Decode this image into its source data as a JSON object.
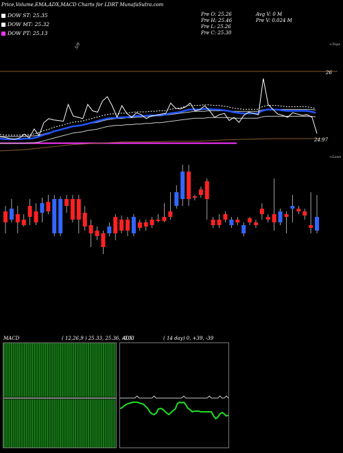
{
  "header": {
    "title": "Price,Volume,EMA,ADX,MACD Charts for LDRT MunafaSutra.com",
    "stats": {
      "pre_o": "Pre  O: 25.26",
      "pre_h": "Pre  H: 25.46",
      "pre_l": "Pre  L: 25.26",
      "pre_c": "Pre  C: 25.30",
      "avg_v": "Avg V: 0  M",
      "pre_v": "Pre  V: 0.024  M"
    }
  },
  "legend": [
    {
      "label": "DOW ST: 25.35",
      "color": "#ffffff"
    },
    {
      "label": "DOW MT: 25.32",
      "color": "#ffffff"
    },
    {
      "label": "DOW PT: 25.13",
      "color": "#ff33ff"
    }
  ],
  "chart_data": [
    {
      "type": "line",
      "title": "Price,Volume,EMA,ADX,MACD Charts for LDRT MunafaSutra.com",
      "ytick_labels": [
        "26",
        "24.97"
      ],
      "annotations": [
        "<Tops",
        "<Lows",
        "5/9"
      ],
      "colors": {
        "price": "#ffffff",
        "ema_fast": "#2255ff",
        "ema_slow": "#cccccc",
        "support": "#8b5a2b",
        "pt_line": "#ff33ff",
        "up": "#3366ff",
        "down": "#ff2222"
      },
      "series": [
        {
          "name": "price",
          "values": [
            25.0,
            24.99,
            24.97,
            24.96,
            24.98,
            25.04,
            24.98,
            25.12,
            25.02,
            25.22,
            25.28,
            25.26,
            25.25,
            25.24,
            25.5,
            25.32,
            25.3,
            25.28,
            25.5,
            25.4,
            25.38,
            25.55,
            25.62,
            25.48,
            25.3,
            25.48,
            25.36,
            25.3,
            25.37,
            25.34,
            25.28,
            25.32,
            25.33,
            25.35,
            25.36,
            25.52,
            25.44,
            25.43,
            25.46,
            25.52,
            25.4,
            25.42,
            25.48,
            25.4,
            25.3,
            25.34,
            25.36,
            25.25,
            25.3,
            25.22,
            25.33,
            25.38,
            25.36,
            25.34,
            25.9,
            25.5,
            25.42,
            25.35,
            25.33,
            25.3,
            25.37,
            25.35,
            25.33,
            25.34,
            25.3,
            25.05
          ]
        },
        {
          "name": "ema_fast",
          "values": [
            24.97,
            24.96,
            24.96,
            24.96,
            24.96,
            24.97,
            24.97,
            24.98,
            25.0,
            25.03,
            25.05,
            25.08,
            25.1,
            25.12,
            25.14,
            25.16,
            25.17,
            25.18,
            25.2,
            25.22,
            25.24,
            25.26,
            25.28,
            25.29,
            25.29,
            25.3,
            25.3,
            25.31,
            25.32,
            25.32,
            25.32,
            25.33,
            25.33,
            25.34,
            25.34,
            25.36,
            25.37,
            25.38,
            25.4,
            25.42,
            25.42,
            25.42,
            25.43,
            25.43,
            25.42,
            25.42,
            25.41,
            25.4,
            25.38,
            25.37,
            25.36,
            25.36,
            25.36,
            25.36,
            25.4,
            25.42,
            25.42,
            25.42,
            25.41,
            25.4,
            25.4,
            25.4,
            25.4,
            25.4,
            25.39,
            25.37
          ]
        },
        {
          "name": "ema_slow",
          "values": [
            24.96,
            24.96,
            24.96,
            24.96,
            24.96,
            24.96,
            24.97,
            24.97,
            24.98,
            25.0,
            25.02,
            25.04,
            25.06,
            25.08,
            25.1,
            25.12,
            25.13,
            25.14,
            25.16,
            25.17,
            25.18,
            25.2,
            25.22,
            25.23,
            25.24,
            25.24,
            25.25,
            25.25,
            25.26,
            25.26,
            25.27,
            25.27,
            25.28,
            25.28,
            25.29,
            25.3,
            25.31,
            25.32,
            25.33,
            25.34,
            25.35,
            25.35,
            25.35,
            25.36,
            25.36,
            25.36,
            25.36,
            25.36,
            25.35,
            25.35,
            25.35,
            25.35,
            25.35,
            25.35,
            25.37,
            25.38,
            25.38,
            25.38,
            25.38,
            25.38,
            25.38,
            25.38,
            25.38,
            25.38,
            25.38,
            25.37
          ]
        },
        {
          "name": "pt_line",
          "values": [
            24.9,
            24.9
          ]
        },
        {
          "name": "support",
          "values": [
            24.78,
            24.8,
            24.84,
            24.88,
            24.9,
            24.92,
            24.92,
            24.93,
            24.93,
            24.95,
            24.96,
            24.97,
            24.97,
            24.97
          ]
        }
      ],
      "candles": [
        {
          "o": 25.36,
          "c": 25.28,
          "h": 25.4,
          "l": 25.2,
          "up": false
        },
        {
          "o": 25.3,
          "c": 25.38,
          "h": 25.45,
          "l": 25.28,
          "up": true
        },
        {
          "o": 25.34,
          "c": 25.28,
          "h": 25.4,
          "l": 25.2,
          "up": false
        },
        {
          "o": 25.26,
          "c": 25.3,
          "h": 25.34,
          "l": 25.25,
          "up": false
        },
        {
          "o": 25.4,
          "c": 25.32,
          "h": 25.45,
          "l": 25.26,
          "up": false
        },
        {
          "o": 25.36,
          "c": 25.28,
          "h": 25.42,
          "l": 25.26,
          "up": false
        },
        {
          "o": 25.35,
          "c": 25.42,
          "h": 25.46,
          "l": 25.28,
          "up": true
        },
        {
          "o": 25.43,
          "c": 25.36,
          "h": 25.48,
          "l": 25.34,
          "up": false
        },
        {
          "o": 25.45,
          "c": 25.2,
          "h": 25.48,
          "l": 25.18,
          "up": true
        },
        {
          "o": 25.2,
          "c": 25.45,
          "h": 25.47,
          "l": 25.18,
          "up": true
        },
        {
          "o": 25.4,
          "c": 25.45,
          "h": 25.48,
          "l": 25.35,
          "up": false
        },
        {
          "o": 25.45,
          "c": 25.3,
          "h": 25.48,
          "l": 25.28,
          "up": false
        },
        {
          "o": 25.3,
          "c": 25.45,
          "h": 25.48,
          "l": 25.2,
          "up": false
        },
        {
          "o": 25.35,
          "c": 25.25,
          "h": 25.4,
          "l": 25.22,
          "up": false
        },
        {
          "o": 25.26,
          "c": 25.2,
          "h": 25.3,
          "l": 25.1,
          "up": false
        },
        {
          "o": 25.18,
          "c": 25.22,
          "h": 25.25,
          "l": 25.15,
          "up": false
        },
        {
          "o": 25.2,
          "c": 25.1,
          "h": 25.22,
          "l": 25.05,
          "up": false
        },
        {
          "o": 25.2,
          "c": 25.25,
          "h": 25.28,
          "l": 25.18,
          "up": true
        },
        {
          "o": 25.2,
          "c": 25.32,
          "h": 25.34,
          "l": 25.15,
          "up": false
        },
        {
          "o": 25.3,
          "c": 25.22,
          "h": 25.33,
          "l": 25.2,
          "up": false
        },
        {
          "o": 25.22,
          "c": 25.3,
          "h": 25.32,
          "l": 25.18,
          "up": false
        },
        {
          "o": 25.32,
          "c": 25.2,
          "h": 25.34,
          "l": 25.18,
          "up": true
        },
        {
          "o": 25.24,
          "c": 25.28,
          "h": 25.3,
          "l": 25.22,
          "up": false
        },
        {
          "o": 25.25,
          "c": 25.28,
          "h": 25.3,
          "l": 25.22,
          "up": false
        },
        {
          "o": 25.26,
          "c": 25.3,
          "h": 25.32,
          "l": 25.24,
          "up": false
        },
        {
          "o": 25.3,
          "c": 25.3,
          "h": 25.34,
          "l": 25.28,
          "up": false
        },
        {
          "o": 25.29,
          "c": 25.32,
          "h": 25.42,
          "l": 25.28,
          "up": false
        },
        {
          "o": 25.32,
          "c": 25.36,
          "h": 25.5,
          "l": 25.3,
          "up": false
        },
        {
          "o": 25.4,
          "c": 25.5,
          "h": 25.55,
          "l": 25.38,
          "up": true
        },
        {
          "o": 25.45,
          "c": 25.65,
          "h": 25.7,
          "l": 25.4,
          "up": true
        },
        {
          "o": 25.65,
          "c": 25.45,
          "h": 25.7,
          "l": 25.4,
          "up": false
        },
        {
          "o": 25.47,
          "c": 25.46,
          "h": 25.48,
          "l": 25.44,
          "up": false
        },
        {
          "o": 25.48,
          "c": 25.52,
          "h": 25.54,
          "l": 25.46,
          "up": false
        },
        {
          "o": 25.58,
          "c": 25.45,
          "h": 25.6,
          "l": 25.3,
          "up": false
        },
        {
          "o": 25.3,
          "c": 25.26,
          "h": 25.32,
          "l": 25.24,
          "up": false
        },
        {
          "o": 25.26,
          "c": 25.3,
          "h": 25.34,
          "l": 25.24,
          "up": false
        },
        {
          "o": 25.3,
          "c": 25.34,
          "h": 25.36,
          "l": 25.28,
          "up": false
        },
        {
          "o": 25.3,
          "c": 25.26,
          "h": 25.32,
          "l": 25.24,
          "up": true
        },
        {
          "o": 25.28,
          "c": 25.3,
          "h": 25.32,
          "l": 25.26,
          "up": false
        },
        {
          "o": 25.26,
          "c": 25.2,
          "h": 25.28,
          "l": 25.18,
          "up": true
        },
        {
          "o": 25.28,
          "c": 25.31,
          "h": 25.32,
          "l": 25.26,
          "up": false
        },
        {
          "o": 25.26,
          "c": 25.28,
          "h": 25.3,
          "l": 25.24,
          "up": false
        },
        {
          "o": 25.34,
          "c": 25.38,
          "h": 25.42,
          "l": 25.3,
          "up": false
        },
        {
          "o": 25.3,
          "c": 25.32,
          "h": 25.34,
          "l": 25.28,
          "up": false
        },
        {
          "o": 25.28,
          "c": 25.34,
          "h": 25.6,
          "l": 25.22,
          "up": false
        },
        {
          "o": 25.28,
          "c": 25.36,
          "h": 25.38,
          "l": 25.26,
          "up": true
        },
        {
          "o": 25.34,
          "c": 25.32,
          "h": 25.36,
          "l": 25.2,
          "up": false
        },
        {
          "o": 25.38,
          "c": 25.4,
          "h": 25.48,
          "l": 25.28,
          "up": true
        },
        {
          "o": 25.36,
          "c": 25.38,
          "h": 25.4,
          "l": 25.34,
          "up": false
        },
        {
          "o": 25.36,
          "c": 25.33,
          "h": 25.38,
          "l": 25.3,
          "up": false
        },
        {
          "o": 25.26,
          "c": 25.24,
          "h": 25.5,
          "l": 25.2,
          "up": false
        },
        {
          "o": 25.22,
          "c": 25.32,
          "h": 25.48,
          "l": 25.2,
          "up": true
        }
      ]
    },
    {
      "type": "line",
      "title": "MACD",
      "params": "( 12,26,9 ) 25.33, 25.36, -0.03",
      "series": [
        {
          "name": "macd",
          "values": [
            0,
            0,
            0,
            0,
            0,
            0,
            0,
            0,
            0,
            0,
            0,
            0,
            0,
            0,
            0,
            0,
            0,
            0,
            0,
            0
          ]
        },
        {
          "name": "signal",
          "values": [
            0,
            0,
            0,
            0,
            0,
            0,
            0,
            0,
            0,
            0,
            0,
            0,
            0,
            0,
            0,
            0,
            0,
            0,
            0,
            0
          ]
        }
      ],
      "colors": {
        "background": "#000000",
        "bars": "#1a8a1a",
        "line": "#ffffff"
      }
    },
    {
      "type": "line",
      "title": "ADX",
      "params": "( 14  day) 0, +39, -39",
      "series": [
        {
          "name": "adx",
          "values": [
            0,
            0,
            0,
            0,
            0,
            0,
            0,
            0,
            0.03,
            0,
            0,
            0,
            0,
            0,
            0,
            0,
            0.03,
            0,
            0,
            0,
            0,
            0,
            0,
            0,
            0,
            0,
            0,
            0,
            0,
            0,
            0.03,
            0,
            0,
            0,
            0,
            0,
            0,
            0,
            0,
            0,
            0,
            0,
            0.03,
            0,
            0,
            0,
            0,
            0.03,
            0,
            0,
            0.03,
            0
          ]
        },
        {
          "name": "di",
          "values": [
            -0.3,
            -0.28,
            -0.22,
            -0.18,
            -0.16,
            -0.14,
            -0.12,
            -0.12,
            -0.12,
            -0.14,
            -0.16,
            -0.18,
            -0.24,
            -0.3,
            -0.4,
            -0.46,
            -0.48,
            -0.44,
            -0.32,
            -0.3,
            -0.32,
            -0.38,
            -0.44,
            -0.48,
            -0.42,
            -0.36,
            -0.32,
            -0.16,
            -0.12,
            -0.14,
            -0.12,
            -0.2,
            -0.3,
            -0.34,
            -0.4,
            -0.38,
            -0.38,
            -0.38,
            -0.4,
            -0.4,
            -0.4,
            -0.4,
            -0.4,
            -0.4,
            -0.52,
            -0.6,
            -0.56,
            -0.46,
            -0.42,
            -0.46,
            -0.52,
            -0.5
          ]
        }
      ],
      "colors": {
        "adx": "#cccccc",
        "di": "#22dd22"
      }
    }
  ]
}
